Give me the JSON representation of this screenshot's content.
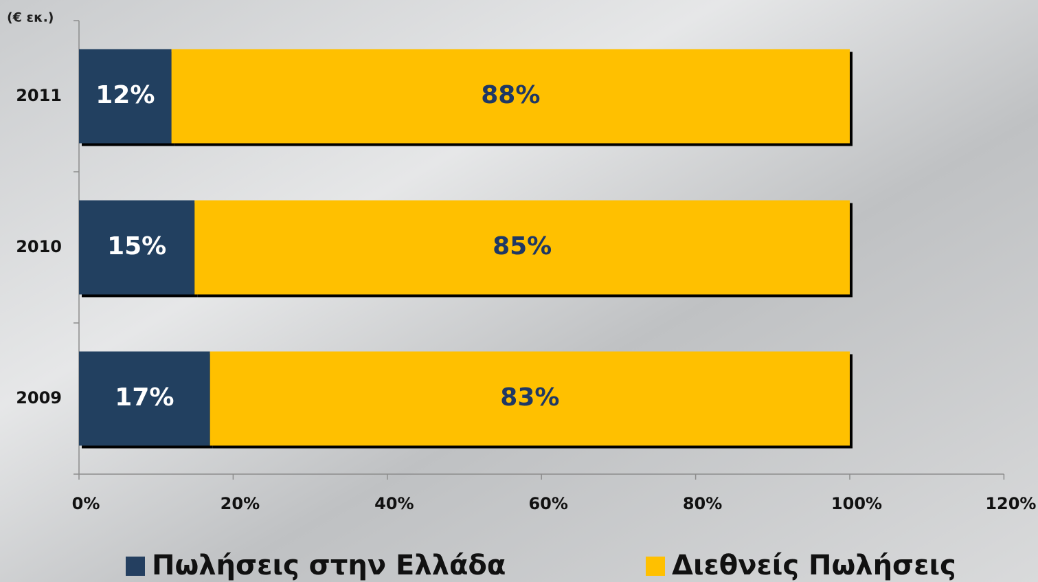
{
  "chart_data": {
    "type": "stacked_bar_horizontal",
    "unit_label": "(€ εκ.)",
    "categories": [
      "2011",
      "2010",
      "2009"
    ],
    "series": [
      {
        "name": "Πωλήσεις στην Ελλάδα",
        "color": "#243f60",
        "label_color": "#ffffff",
        "values": [
          12,
          15,
          17
        ],
        "value_labels": [
          "12%",
          "15%",
          "17%"
        ]
      },
      {
        "name": "Διεθνείς Πωλήσεις",
        "color": "#ffc000",
        "label_color": "#1f3864",
        "values": [
          88,
          85,
          83
        ],
        "value_labels": [
          "88%",
          "85%",
          "83%"
        ]
      }
    ],
    "xlim": [
      0,
      120
    ],
    "xticks": [
      {
        "value": 0,
        "label": "0%"
      },
      {
        "value": 20,
        "label": "20%"
      },
      {
        "value": 40,
        "label": "40%"
      },
      {
        "value": 60,
        "label": "60%"
      },
      {
        "value": 80,
        "label": "80%"
      },
      {
        "value": 100,
        "label": "100%"
      },
      {
        "value": 120,
        "label": "120%"
      }
    ],
    "legend": "bottom"
  }
}
